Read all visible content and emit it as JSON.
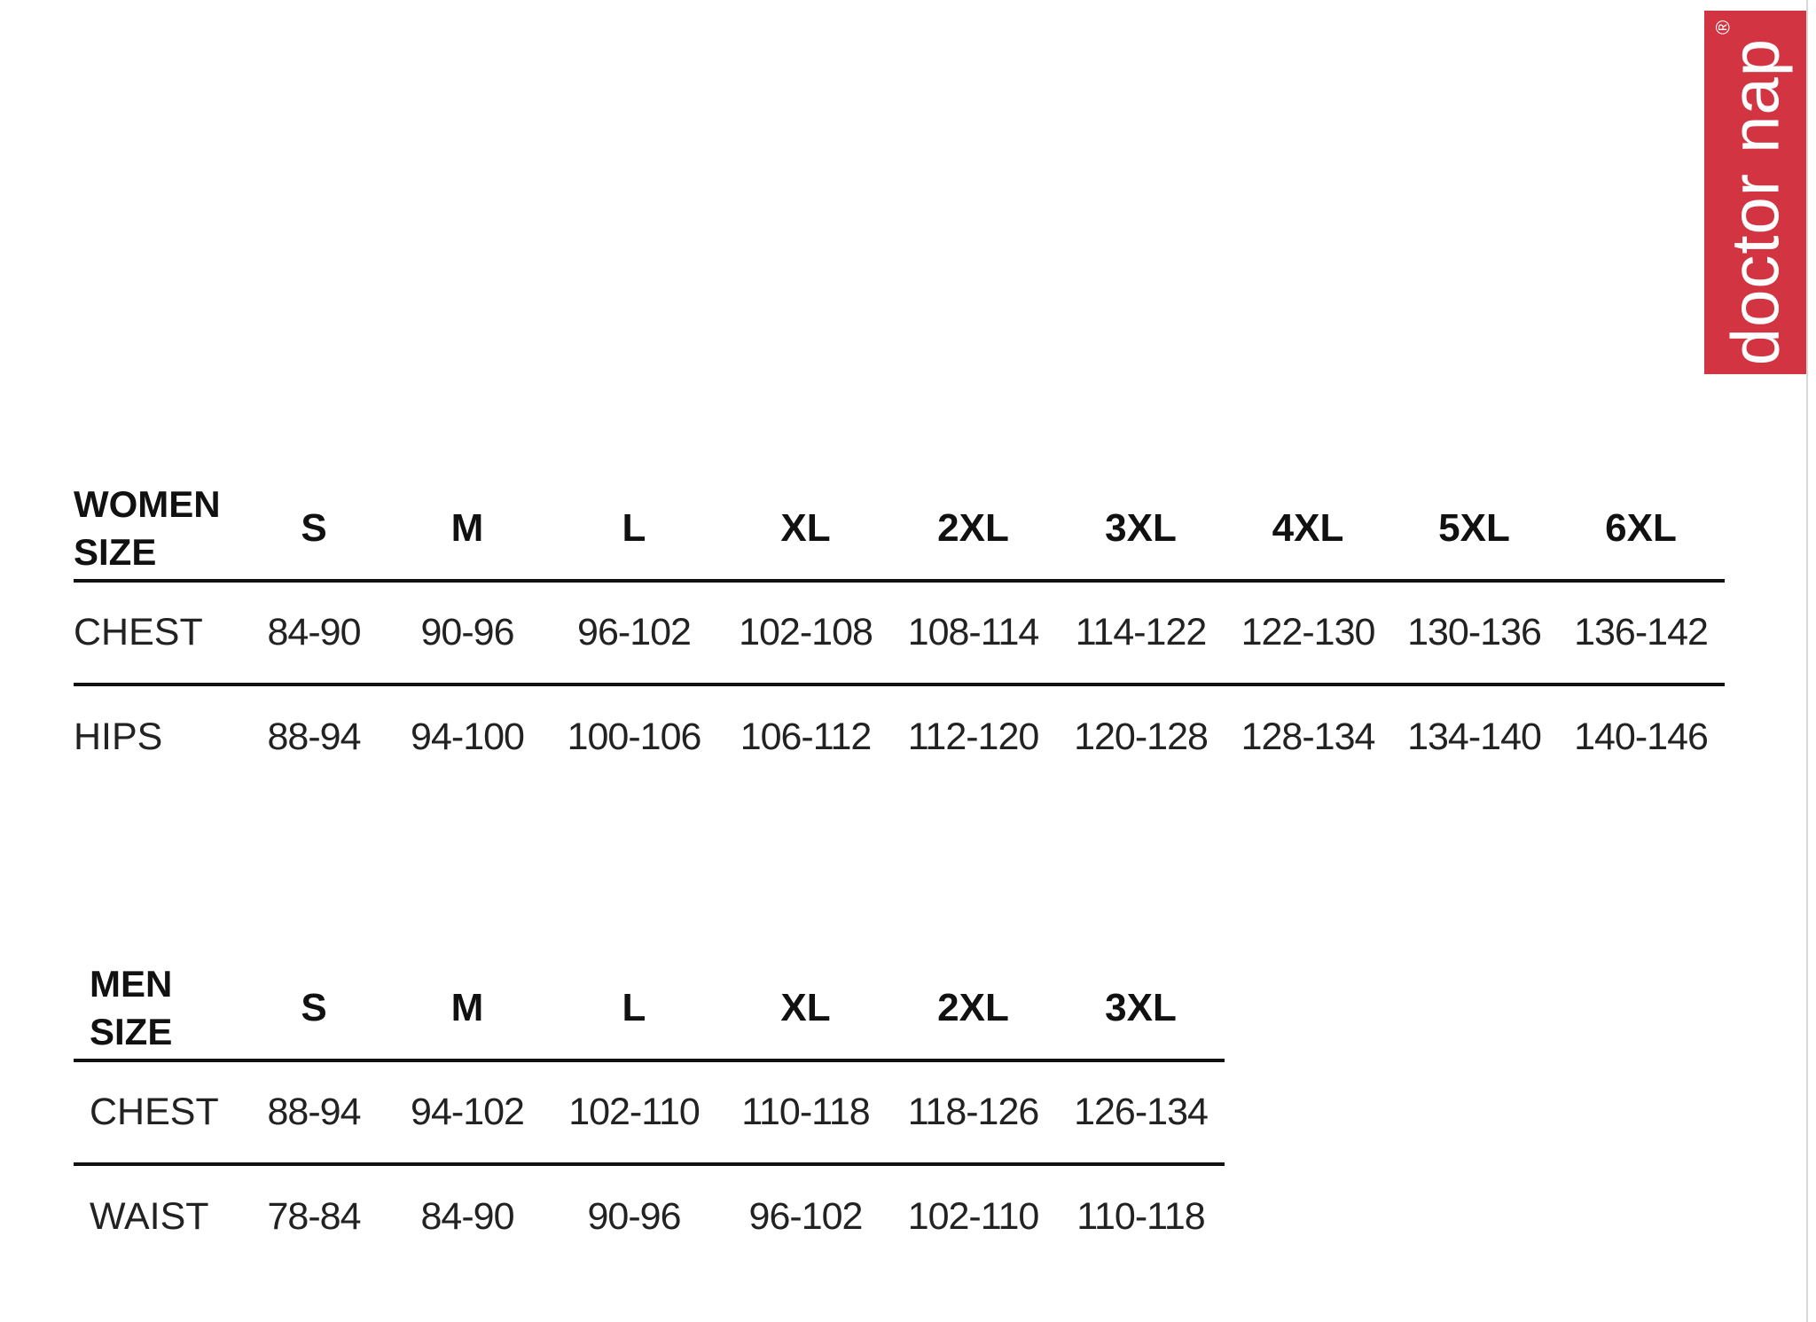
{
  "brand": {
    "name": "doctor nap",
    "mark": "®",
    "color": "#d33441"
  },
  "women": {
    "title_line1": "WOMEN",
    "title_line2": "SIZE",
    "sizes": [
      "S",
      "M",
      "L",
      "XL",
      "2XL",
      "3XL",
      "4XL",
      "5XL",
      "6XL"
    ],
    "rows": [
      {
        "label": "CHEST",
        "values": [
          "84-90",
          "90-96",
          "96-102",
          "102-108",
          "108-114",
          "114-122",
          "122-130",
          "130-136",
          "136-142"
        ]
      },
      {
        "label": "HIPS",
        "values": [
          "88-94",
          "94-100",
          "100-106",
          "106-112",
          "112-120",
          "120-128",
          "128-134",
          "134-140",
          "140-146"
        ]
      }
    ]
  },
  "men": {
    "title_line1": "MEN",
    "title_line2": "SIZE",
    "sizes": [
      "S",
      "M",
      "L",
      "XL",
      "2XL",
      "3XL"
    ],
    "rows": [
      {
        "label": "CHEST",
        "values": [
          "88-94",
          "94-102",
          "102-110",
          "110-118",
          "118-126",
          "126-134"
        ]
      },
      {
        "label": "WAIST",
        "values": [
          "78-84",
          "84-90",
          "90-96",
          "96-102",
          "102-110",
          "110-118"
        ]
      }
    ]
  }
}
